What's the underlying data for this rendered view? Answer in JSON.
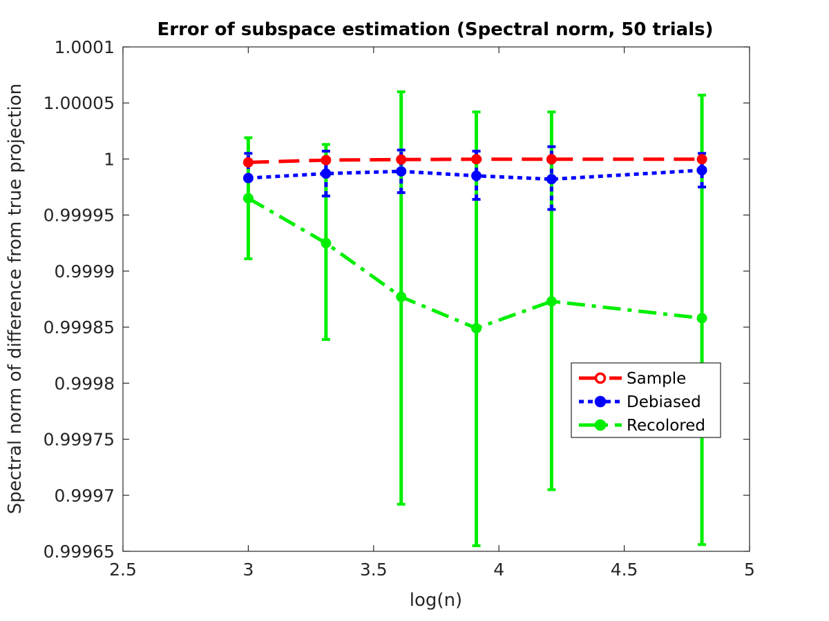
{
  "chart_data": {
    "type": "line",
    "title": "Error of subspace estimation (Spectral norm, 50 trials)",
    "xlabel": "log(n)",
    "ylabel": "Spectral norm of difference from true projection",
    "xlim": [
      2.5,
      5
    ],
    "ylim": [
      0.99965,
      1.0001
    ],
    "xticks": [
      2.5,
      3,
      3.5,
      4,
      4.5,
      5
    ],
    "xtick_labels": [
      "2.5",
      "3",
      "3.5",
      "4",
      "4.5",
      "5"
    ],
    "yticks": [
      0.99965,
      0.9997,
      0.99975,
      0.9998,
      0.99985,
      0.9999,
      0.99995,
      1,
      1.00005,
      1.0001
    ],
    "ytick_labels": [
      "0.99965",
      "0.9997",
      "0.99975",
      "0.9998",
      "0.99985",
      "0.9999",
      "0.99995",
      "1",
      "1.00005",
      "1.0001"
    ],
    "grid": false,
    "legend_position": "right",
    "x": [
      3.0,
      3.31,
      3.61,
      3.91,
      4.21,
      4.81
    ],
    "series": [
      {
        "name": "Sample",
        "color": "#ff0000",
        "line_style": "dashed",
        "marker": "circle",
        "values": [
          0.999997,
          0.999999,
          0.9999995,
          0.9999998,
          0.9999998,
          0.9999998
        ],
        "err_lower": [
          0.999997,
          0.999999,
          0.9999995,
          0.9999998,
          0.9999998,
          0.9999998
        ],
        "err_upper": [
          0.999997,
          0.999999,
          0.9999995,
          0.9999998,
          0.9999998,
          0.9999998
        ]
      },
      {
        "name": "Debiased",
        "color": "#0000ff",
        "line_style": "dotted",
        "marker": "circle",
        "values": [
          0.999983,
          0.999987,
          0.999989,
          0.999985,
          0.999982,
          0.99999
        ],
        "err_lower": [
          0.999983,
          0.999967,
          0.99997,
          0.999964,
          0.999955,
          0.999975
        ],
        "err_upper": [
          1.000005,
          1.000007,
          1.000008,
          1.000007,
          1.000011,
          1.000005
        ]
      },
      {
        "name": "Recolored",
        "color": "#00ee00",
        "line_style": "dashdot",
        "marker": "circle",
        "values": [
          0.999965,
          0.999925,
          0.999877,
          0.999849,
          0.999873,
          0.999858
        ],
        "err_lower": [
          0.999911,
          0.999839,
          0.999692,
          0.999655,
          0.999705,
          0.999656
        ],
        "err_upper": [
          1.000019,
          1.000013,
          1.00006,
          1.000042,
          1.000042,
          1.000057
        ]
      }
    ]
  }
}
